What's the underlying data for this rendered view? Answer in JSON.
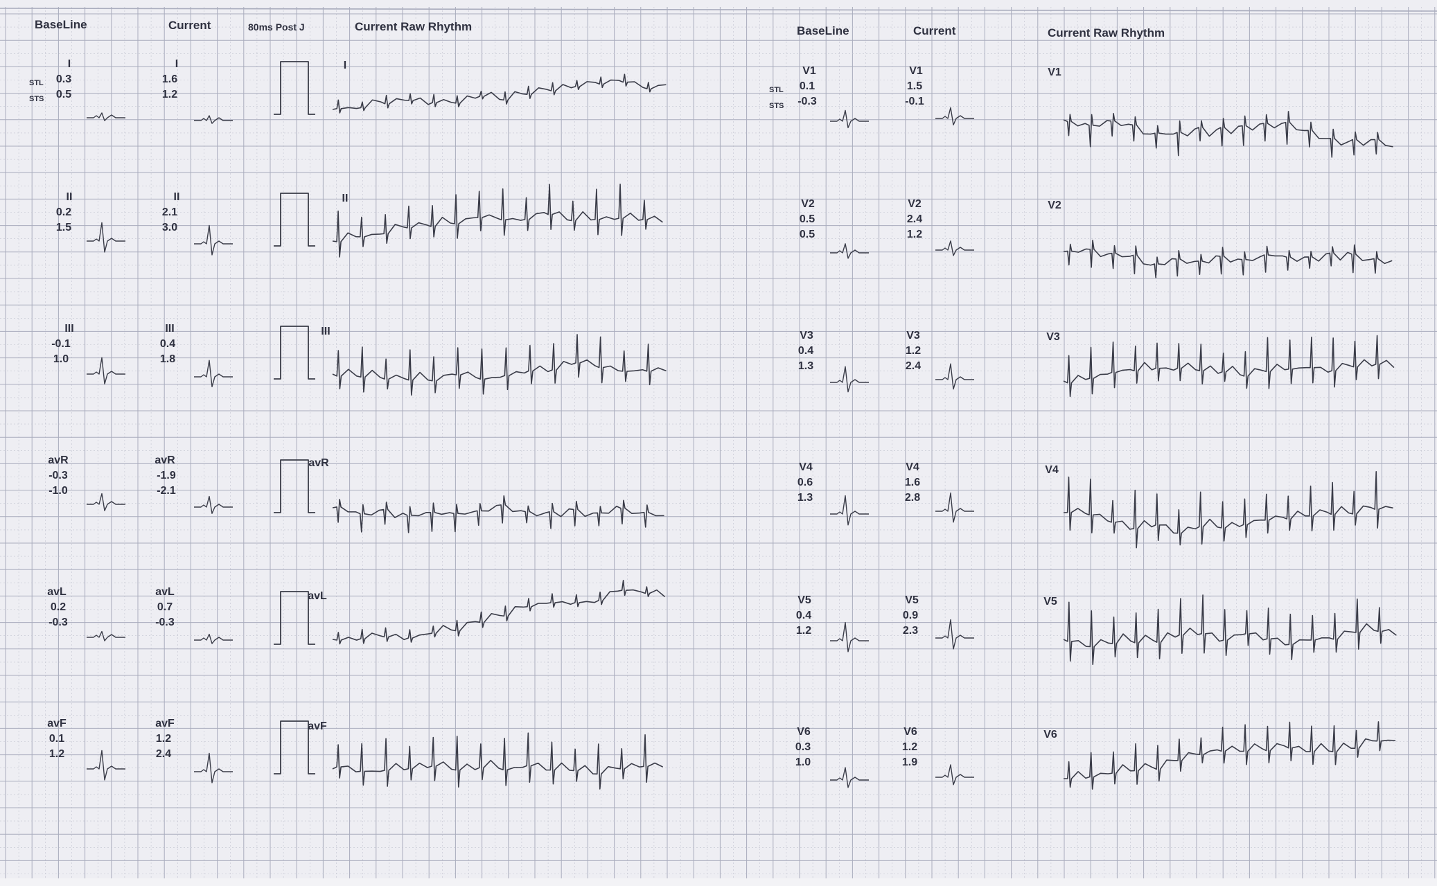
{
  "headers_left": {
    "baseline": "BaseLine",
    "current": "Current",
    "post_j": "80ms Post J",
    "raw_rhythm": "Current Raw Rhythm"
  },
  "headers_right": {
    "baseline": "BaseLine",
    "current": "Current",
    "raw_rhythm": "Current Raw Rhythm"
  },
  "row_tags": {
    "stl": "STL",
    "sts": "STS"
  },
  "left_leads": [
    {
      "lead": "I",
      "base_stl": "0.3",
      "base_sts": "0.5",
      "cur_stl": "1.6",
      "cur_sts": "1.2",
      "rhythm_label": "I"
    },
    {
      "lead": "II",
      "base_stl": "0.2",
      "base_sts": "1.5",
      "cur_stl": "2.1",
      "cur_sts": "3.0",
      "rhythm_label": "II"
    },
    {
      "lead": "III",
      "base_stl": "-0.1",
      "base_sts": "1.0",
      "cur_stl": "0.4",
      "cur_sts": "1.8",
      "rhythm_label": "III"
    },
    {
      "lead": "avR",
      "base_stl": "-0.3",
      "base_sts": "-1.0",
      "cur_stl": "-1.9",
      "cur_sts": "-2.1",
      "rhythm_label": "avR"
    },
    {
      "lead": "avL",
      "base_stl": "0.2",
      "base_sts": "-0.3",
      "cur_stl": "0.7",
      "cur_sts": "-0.3",
      "rhythm_label": "avL"
    },
    {
      "lead": "avF",
      "base_stl": "0.1",
      "base_sts": "1.2",
      "cur_stl": "1.2",
      "cur_sts": "2.4",
      "rhythm_label": "avF"
    }
  ],
  "right_leads": [
    {
      "lead": "V1",
      "base_stl": "0.1",
      "base_sts": "-0.3",
      "cur_stl": "1.5",
      "cur_sts": "-0.1",
      "rhythm_label": "V1"
    },
    {
      "lead": "V2",
      "base_stl": "0.5",
      "base_sts": "0.5",
      "cur_stl": "2.4",
      "cur_sts": "1.2",
      "rhythm_label": "V2"
    },
    {
      "lead": "V3",
      "base_stl": "0.4",
      "base_sts": "1.3",
      "cur_stl": "1.2",
      "cur_sts": "2.4",
      "rhythm_label": "V3"
    },
    {
      "lead": "V4",
      "base_stl": "0.6",
      "base_sts": "1.3",
      "cur_stl": "1.6",
      "cur_sts": "2.8",
      "rhythm_label": "V4"
    },
    {
      "lead": "V5",
      "base_stl": "0.4",
      "base_sts": "1.2",
      "cur_stl": "0.9",
      "cur_sts": "2.3",
      "rhythm_label": "V5"
    },
    {
      "lead": "V6",
      "base_stl": "0.3",
      "base_sts": "1.0",
      "cur_stl": "1.2",
      "cur_sts": "1.9",
      "rhythm_label": "V6"
    }
  ],
  "colors": {
    "paper": "#eeeef3",
    "grid": "#a9acbd",
    "grid_dash": "#c2c4d0",
    "trace": "#3a3c48",
    "text": "#2f3140"
  }
}
